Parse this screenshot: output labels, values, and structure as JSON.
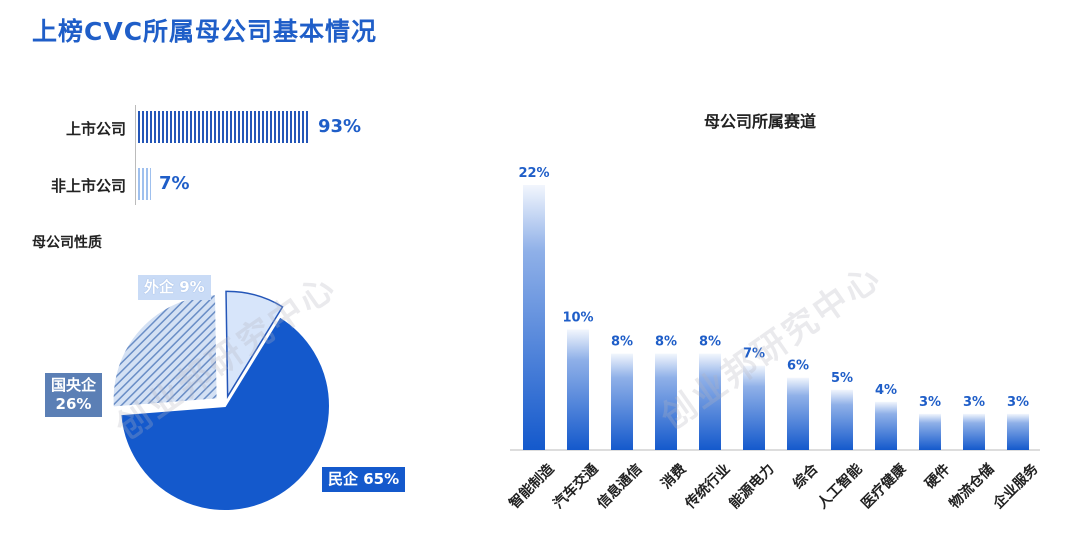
{
  "title": "上榜CVC所属母公司基本情况",
  "listing": {
    "items": [
      {
        "label": "上市公司",
        "value": 93,
        "display": "93%"
      },
      {
        "label": "非上市公司",
        "value": 7,
        "display": "7%"
      }
    ]
  },
  "pie_section_label": "母公司性质",
  "pie": {
    "slices": [
      {
        "label": "民企 65%",
        "name": "民企",
        "value": 65
      },
      {
        "label": "国央企\n26%",
        "name": "国央企",
        "value": 26
      },
      {
        "label": "外企 9%",
        "name": "外企",
        "value": 9
      }
    ]
  },
  "watermark_text": "创业邦研究中心",
  "chart_data": {
    "type": "bar",
    "title": "母公司所属赛道",
    "categories": [
      "智能制造",
      "汽车交通",
      "信息通信",
      "消费",
      "传统行业",
      "能源电力",
      "综合",
      "人工智能",
      "医疗健康",
      "硬件",
      "物流仓储",
      "企业服务"
    ],
    "values": [
      22,
      10,
      8,
      8,
      8,
      7,
      6,
      5,
      4,
      3,
      3,
      3
    ],
    "value_labels": [
      "22%",
      "10%",
      "8%",
      "8%",
      "8%",
      "7%",
      "6%",
      "5%",
      "4%",
      "3%",
      "3%",
      "3%"
    ],
    "ylim": [
      0,
      22
    ],
    "colors": {
      "bar_top": "#e8f0fc",
      "bar_bottom": "#1459cc",
      "label": "#1f5ec8"
    }
  }
}
